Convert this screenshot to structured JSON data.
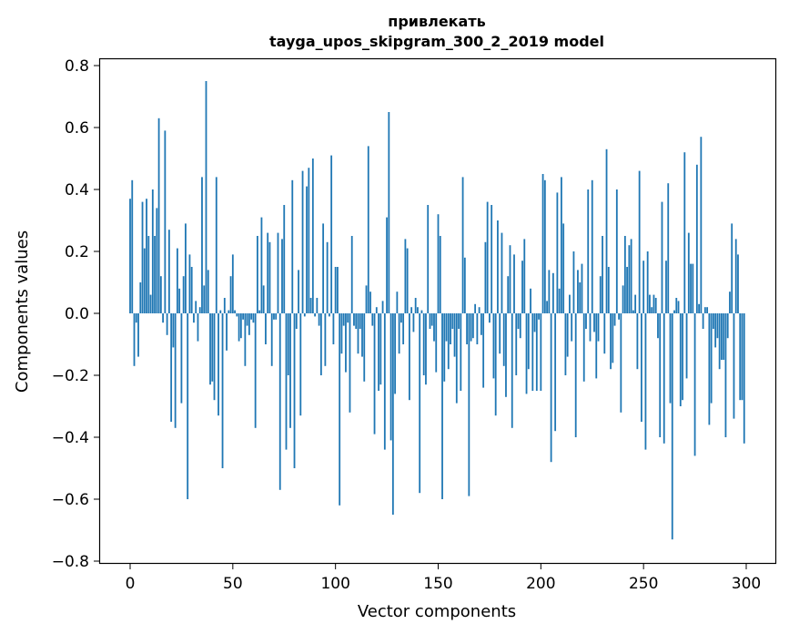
{
  "chart_data": {
    "type": "bar",
    "title_line1": "привлекать",
    "title_line2": "tayga_upos_skipgram_300_2_2019 model",
    "xlabel": "Vector components",
    "ylabel": "Components values",
    "xlim": [
      -15,
      315
    ],
    "ylim": [
      -0.81,
      0.83
    ],
    "xticks": [
      0,
      50,
      100,
      150,
      200,
      250,
      300
    ],
    "yticks": [
      0.8,
      0.6,
      0.4,
      0.2,
      0.0,
      -0.2,
      -0.4,
      -0.6,
      -0.8
    ],
    "ytick_labels": [
      "0.8",
      "0.6",
      "0.4",
      "0.2",
      "0.0",
      "−0.2",
      "−0.4",
      "−0.6",
      "−0.8"
    ],
    "bar_color": "#1f77b4",
    "grid": false,
    "values": [
      0.37,
      0.43,
      -0.17,
      -0.03,
      -0.14,
      0.1,
      0.36,
      0.21,
      0.37,
      0.25,
      0.06,
      0.4,
      0.25,
      0.34,
      0.63,
      0.12,
      -0.03,
      0.59,
      -0.07,
      0.27,
      -0.35,
      -0.11,
      -0.37,
      0.21,
      0.08,
      -0.29,
      0.12,
      0.29,
      -0.6,
      0.19,
      0.15,
      -0.03,
      0.04,
      -0.09,
      0.02,
      0.44,
      0.09,
      0.75,
      0.14,
      -0.23,
      -0.22,
      -0.28,
      0.44,
      -0.33,
      0.01,
      -0.5,
      0.05,
      -0.12,
      0.01,
      0.12,
      0.19,
      0.01,
      -0.01,
      -0.09,
      -0.08,
      -0.02,
      -0.17,
      -0.04,
      -0.07,
      -0.02,
      -0.03,
      -0.37,
      0.25,
      0.01,
      0.31,
      0.09,
      -0.1,
      0.26,
      0.23,
      -0.17,
      -0.02,
      -0.02,
      0.26,
      -0.57,
      0.24,
      0.35,
      -0.44,
      -0.2,
      -0.37,
      0.43,
      -0.5,
      -0.05,
      0.14,
      -0.33,
      0.46,
      -0.01,
      0.41,
      0.47,
      0.05,
      0.5,
      -0.01,
      0.05,
      -0.04,
      -0.2,
      0.29,
      -0.17,
      0.23,
      -0.01,
      0.51,
      -0.1,
      0.15,
      0.15,
      -0.62,
      -0.13,
      -0.04,
      -0.19,
      -0.03,
      -0.32,
      0.25,
      -0.04,
      -0.05,
      -0.13,
      -0.05,
      -0.14,
      -0.22,
      0.09,
      0.54,
      0.07,
      -0.04,
      -0.39,
      0.02,
      -0.25,
      -0.23,
      0.04,
      -0.44,
      0.31,
      0.65,
      -0.41,
      -0.65,
      -0.26,
      0.07,
      -0.13,
      -0.03,
      -0.1,
      0.24,
      0.21,
      -0.28,
      0.02,
      -0.06,
      0.05,
      0.02,
      -0.58,
      0.01,
      -0.2,
      -0.23,
      0.35,
      -0.05,
      -0.04,
      -0.09,
      -0.19,
      0.32,
      0.25,
      -0.6,
      -0.22,
      -0.09,
      -0.18,
      -0.1,
      -0.05,
      -0.14,
      -0.29,
      -0.05,
      -0.25,
      0.44,
      0.18,
      -0.1,
      -0.59,
      -0.09,
      -0.08,
      0.03,
      -0.1,
      0.02,
      -0.07,
      -0.24,
      0.23,
      0.36,
      -0.03,
      0.35,
      -0.21,
      -0.33,
      0.3,
      -0.13,
      0.26,
      -0.17,
      -0.27,
      0.12,
      0.22,
      -0.37,
      0.19,
      -0.2,
      -0.05,
      -0.08,
      0.17,
      0.24,
      -0.26,
      -0.18,
      0.08,
      -0.25,
      -0.06,
      -0.25,
      -0.02,
      -0.25,
      0.45,
      0.43,
      0.04,
      0.14,
      -0.48,
      0.13,
      -0.38,
      0.39,
      0.08,
      0.44,
      0.29,
      -0.2,
      -0.14,
      0.06,
      -0.09,
      0.2,
      -0.4,
      0.14,
      0.1,
      0.16,
      -0.22,
      -0.05,
      0.4,
      -0.09,
      0.43,
      -0.06,
      -0.21,
      -0.09,
      0.12,
      0.25,
      -0.13,
      0.53,
      0.15,
      -0.18,
      -0.16,
      -0.04,
      0.4,
      -0.02,
      -0.32,
      0.09,
      0.25,
      0.15,
      0.22,
      0.24,
      0.01,
      0.06,
      -0.18,
      0.46,
      -0.35,
      0.17,
      -0.44,
      0.2,
      0.06,
      0.02,
      0.06,
      0.05,
      -0.08,
      -0.4,
      0.36,
      -0.42,
      0.17,
      0.42,
      -0.29,
      -0.73,
      0.01,
      0.05,
      0.04,
      -0.3,
      -0.28,
      0.52,
      -0.21,
      0.26,
      0.16,
      0.16,
      -0.46,
      0.48,
      0.03,
      0.57,
      -0.05,
      0.02,
      0.02,
      -0.36,
      -0.29,
      -0.05,
      -0.11,
      -0.08,
      -0.18,
      -0.15,
      -0.15,
      -0.4,
      -0.08,
      0.07,
      0.29,
      -0.34,
      0.24,
      0.19,
      -0.28,
      -0.28,
      -0.42
    ]
  }
}
